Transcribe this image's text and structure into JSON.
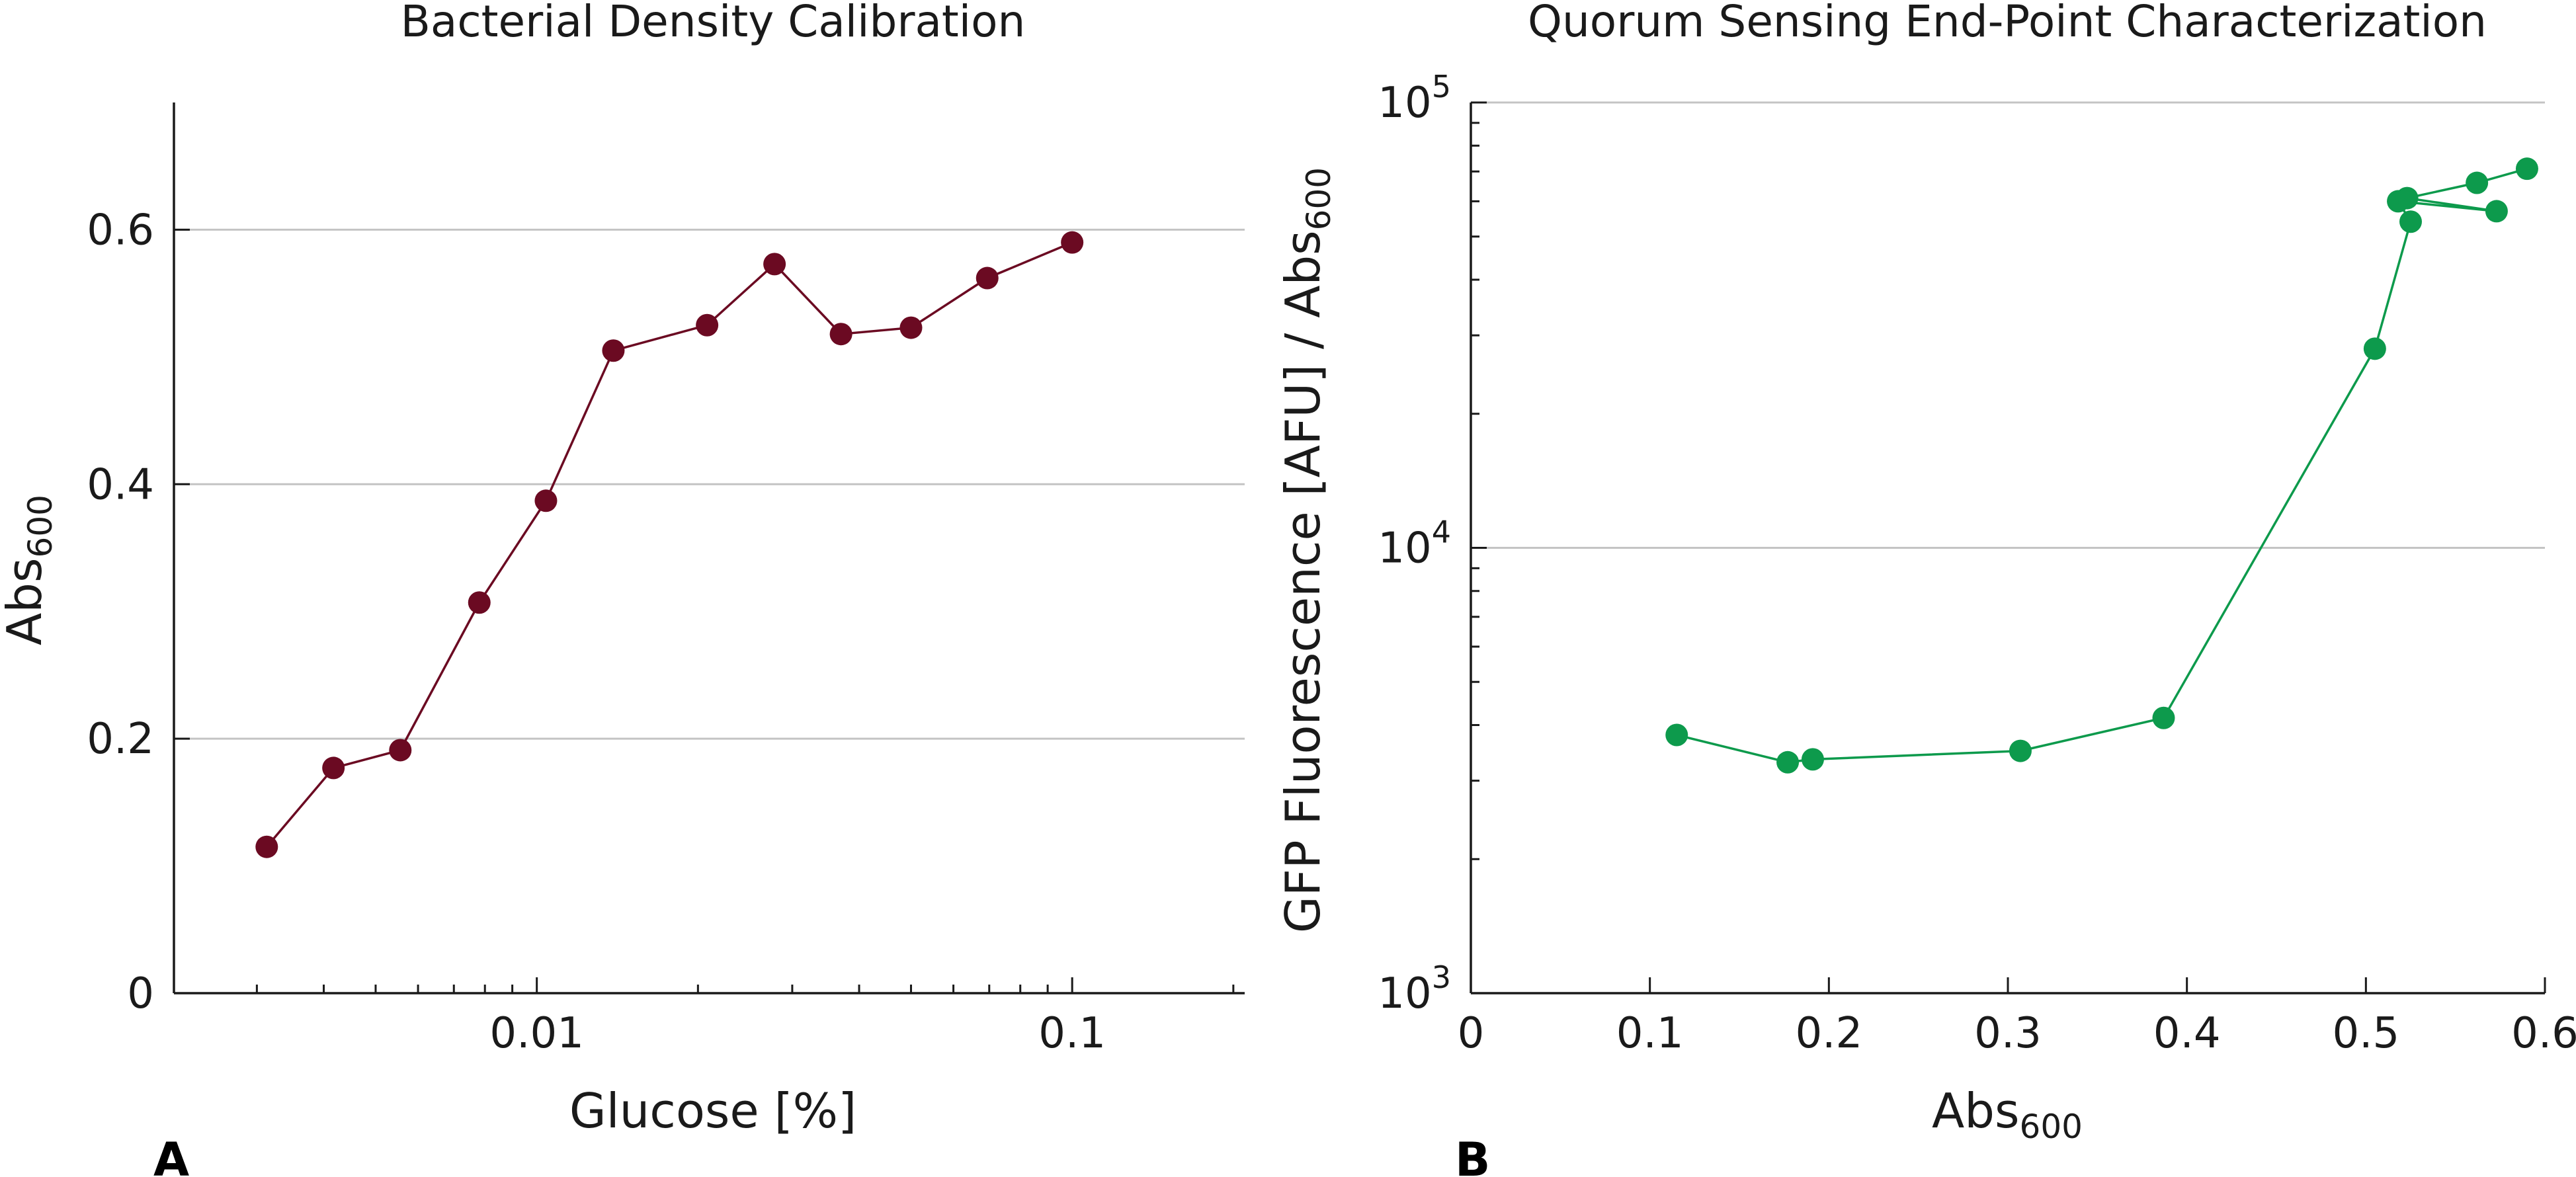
{
  "panels": [
    {
      "label": "A",
      "title": "Bacterial Density Calibration",
      "xlabel": "Glucose [%]",
      "ylabel": "Abs",
      "ylabel_sub": "600"
    },
    {
      "label": "B",
      "title": "Quorum Sensing End-Point Characterization",
      "xlabel": "Abs",
      "xlabel_sub": "600",
      "ylabel": "GFP Fluorescence [AFU] / Abs",
      "ylabel_sub": "600"
    }
  ],
  "chart_data": [
    {
      "type": "line",
      "title": "Bacterial Density Calibration",
      "xlabel": "Glucose [%]",
      "ylabel": "Abs600",
      "xscale": "log",
      "xlim": [
        0.0021,
        0.21
      ],
      "ylim": [
        0,
        0.7
      ],
      "xticks": [
        0.01,
        0.1
      ],
      "xtick_labels": [
        "0.01",
        "0.1"
      ],
      "yticks": [
        0,
        0.2,
        0.4,
        0.6
      ],
      "ytick_labels": [
        "0",
        "0.2",
        "0.4",
        "0.6"
      ],
      "grid": "horizontal",
      "color": "#6b0a22",
      "series": [
        {
          "x": [
            0.00313,
            0.00417,
            0.00556,
            0.00781,
            0.0104,
            0.0139,
            0.0208,
            0.0278,
            0.037,
            0.05,
            0.0694,
            0.1
          ],
          "y": [
            0.115,
            0.177,
            0.191,
            0.307,
            0.387,
            0.505,
            0.525,
            0.573,
            0.518,
            0.523,
            0.562,
            0.59
          ]
        }
      ]
    },
    {
      "type": "line",
      "title": "Quorum Sensing End-Point Characterization",
      "xlabel": "Abs600",
      "ylabel": "GFP Fluorescence [AFU] / Abs600",
      "yscale": "log",
      "xlim": [
        0,
        0.6
      ],
      "ylim": [
        1000,
        100000
      ],
      "xticks": [
        0,
        0.1,
        0.2,
        0.3,
        0.4,
        0.5,
        0.6
      ],
      "xtick_labels": [
        "0",
        "0.1",
        "0.2",
        "0.3",
        "0.4",
        "0.5",
        "0.6"
      ],
      "yticks": [
        1000,
        10000,
        100000
      ],
      "ytick_labels": [
        {
          "base": "10",
          "exp": "3"
        },
        {
          "base": "10",
          "exp": "4"
        },
        {
          "base": "10",
          "exp": "5"
        }
      ],
      "grid": "horizontal",
      "color": "#0d9a4c",
      "series": [
        {
          "x": [
            0.115,
            0.177,
            0.191,
            0.307,
            0.387,
            0.505,
            0.525,
            0.518,
            0.573,
            0.523,
            0.562,
            0.59
          ],
          "y": [
            3800,
            3300,
            3350,
            3500,
            4150,
            28000,
            54000,
            60000,
            57000,
            61000,
            66000,
            71000
          ]
        }
      ]
    }
  ]
}
